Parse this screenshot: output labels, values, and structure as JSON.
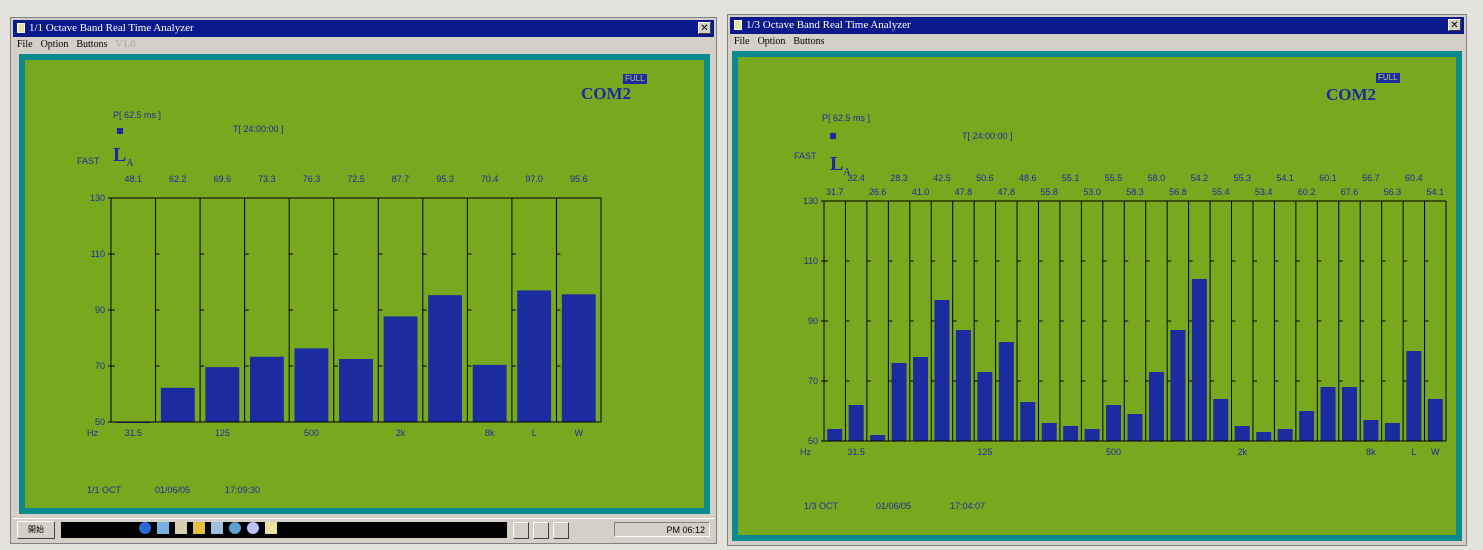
{
  "win1": {
    "title": "1/1 Octave Band Real Time Analyzer",
    "menu": [
      "File",
      "Option",
      "Buttons"
    ],
    "menu_disabled": "V1.0",
    "com": "COM2",
    "full": "FULL",
    "p_label": "P[ 62.5 ms ]",
    "t_label": "T[ 24:00:00 ]",
    "fast": "FAST",
    "la_main": "L",
    "la_sub": "A",
    "footer": {
      "mode": "1/1 OCT",
      "date": "01/06/05",
      "time": "17:09:30"
    },
    "taskbar": {
      "start": "開始",
      "clock": "PM 06:12"
    }
  },
  "win2": {
    "title": "1/3 Octave Band Real Time Analyzer",
    "menu": [
      "File",
      "Option",
      "Buttons"
    ],
    "com": "COM2",
    "full": "FULL",
    "p_label": "P[ 62.5 ms ]",
    "t_label": "T[ 24:00:00 ]",
    "fast": "FAST",
    "la_main": "L",
    "la_sub": "A",
    "footer": {
      "mode": "1/3 OCT",
      "date": "01/06/05",
      "time": "17:04:07"
    }
  },
  "colors": {
    "panel": "#78a81e",
    "bar": "#1c2ca0",
    "frame": "#0a8a8a",
    "title": "#0a1a8c"
  },
  "chart_data": [
    {
      "type": "bar",
      "yticks": [
        "130",
        "110",
        "90",
        "70",
        "50"
      ],
      "ylim": [
        50,
        130
      ],
      "xunit": "Hz",
      "xlabels": [
        {
          "label": "31.5",
          "index": 0
        },
        {
          "label": "125",
          "index": 2
        },
        {
          "label": "500",
          "index": 4
        },
        {
          "label": "2k",
          "index": 6
        },
        {
          "label": "8k",
          "index": 8
        },
        {
          "label": "L",
          "index": 9
        },
        {
          "label": "W",
          "index": 10
        }
      ],
      "value_labels": [
        "48.1",
        "62.2",
        "69.6",
        "73.3",
        "76.3",
        "72.5",
        "87.7",
        "95.3",
        "70.4",
        "97.0",
        "95.6"
      ],
      "values": [
        48.1,
        62.2,
        69.6,
        73.3,
        76.3,
        72.5,
        87.7,
        95.3,
        70.4,
        97.0,
        95.6
      ]
    },
    {
      "type": "bar",
      "yticks": [
        "130",
        "110",
        "90",
        "70",
        "50"
      ],
      "ylim": [
        50,
        130
      ],
      "xunit": "Hz",
      "xlabels": [
        {
          "label": "31.5",
          "index": 1
        },
        {
          "label": "125",
          "index": 7
        },
        {
          "label": "500",
          "index": 13
        },
        {
          "label": "2k",
          "index": 19
        },
        {
          "label": "8k",
          "index": 25
        },
        {
          "label": "L",
          "index": 27
        },
        {
          "label": "W",
          "index": 28
        }
      ],
      "value_labels_top": [
        "32.4",
        "28.3",
        "42.5",
        "50.6",
        "48.6",
        "55.1",
        "55.5",
        "58.0",
        "54.2",
        "55.3",
        "54.1",
        "60.1",
        "56.7",
        "60.4"
      ],
      "value_labels_bottom": [
        "31.7",
        "26.6",
        "41.0",
        "47.8",
        "47.8",
        "55.8",
        "53.0",
        "58.3",
        "56.8",
        "55.4",
        "53.4",
        "60.2",
        "67.6",
        "56.3",
        "54.1"
      ],
      "values": [
        54,
        62,
        52,
        76,
        78,
        97,
        87,
        73,
        83,
        63,
        56,
        55,
        54,
        62,
        59,
        73,
        87,
        104,
        64,
        55,
        53,
        54,
        60,
        68,
        68,
        57,
        56,
        80,
        64
      ]
    }
  ]
}
